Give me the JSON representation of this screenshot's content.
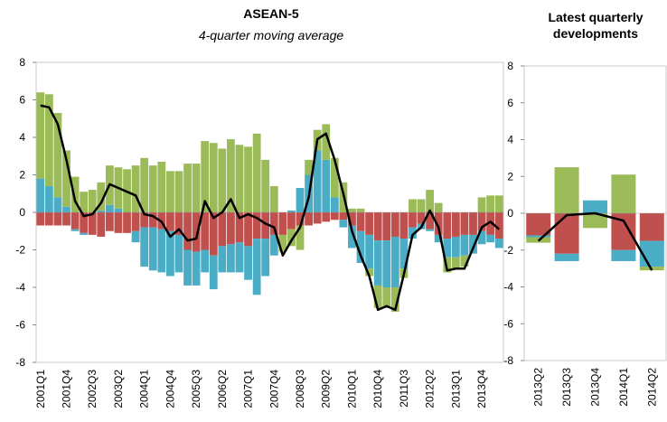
{
  "chart_data": [
    {
      "type": "bar",
      "title": "ASEAN-5",
      "subtitle": "4-quarter moving average",
      "stacked": true,
      "categories": [
        "2001Q1",
        null,
        null,
        "2001Q4",
        null,
        null,
        "2002Q3",
        null,
        null,
        "2003Q2",
        null,
        null,
        "2004Q1",
        null,
        null,
        "2004Q4",
        null,
        null,
        "2005Q3",
        null,
        null,
        "2006Q2",
        null,
        null,
        "2007Q1",
        null,
        null,
        "2007Q4",
        null,
        null,
        "2008Q3",
        null,
        null,
        "2009Q2",
        null,
        null,
        "2010Q1",
        null,
        null,
        "2010Q4",
        null,
        null,
        "2011Q3",
        null,
        null,
        "2012Q2",
        null,
        null,
        "2013Q1",
        null,
        null,
        "2013Q4",
        null,
        null
      ],
      "series": [
        {
          "color": "#c0504d",
          "values": [
            -0.7,
            -0.7,
            -0.7,
            -0.7,
            -0.9,
            -1.1,
            -1.2,
            -1.3,
            -1.0,
            -1.1,
            -1.1,
            -1.0,
            -0.8,
            -0.8,
            -0.9,
            -1.0,
            -1.2,
            -2.0,
            -2.1,
            -2.0,
            -2.3,
            -1.8,
            -1.7,
            -1.6,
            -1.8,
            -1.4,
            -1.4,
            -1.2,
            -1.2,
            -0.9,
            -0.7,
            -0.7,
            -0.6,
            -0.5,
            -0.4,
            -0.4,
            -0.7,
            -1.0,
            -1.2,
            -1.5,
            -1.5,
            -1.3,
            -1.4,
            -0.8,
            -0.6,
            -0.9,
            -1.2,
            -1.4,
            -1.3,
            -1.2,
            -1.2,
            -1.0,
            -1.2,
            -1.4
          ]
        },
        {
          "color": "#4bacc6",
          "values": [
            1.8,
            1.4,
            0.8,
            0.3,
            -0.1,
            -0.1,
            0,
            0.1,
            0.4,
            0.2,
            0,
            -0.6,
            -2.1,
            -2.3,
            -2.3,
            -2.4,
            -2.0,
            -1.9,
            -1.8,
            -1.2,
            -1.8,
            -1.4,
            -1.5,
            -1.6,
            -1.8,
            -3.0,
            -2.0,
            -1.1,
            0,
            0.1,
            1.3,
            2.0,
            3.3,
            2.8,
            0.8,
            -0.4,
            -1.2,
            -1.7,
            -1.8,
            -2.4,
            -2.5,
            -2.7,
            -1.6,
            -0.6,
            -0.3,
            -0.1,
            -0.4,
            -1.0,
            -1.1,
            -1.1,
            -1.0,
            -0.7,
            -0.4,
            -0.5
          ]
        },
        {
          "color": "#9bbb59",
          "values": [
            4.6,
            4.9,
            4.5,
            3.0,
            1.9,
            1.1,
            1.2,
            1.5,
            2.1,
            2.2,
            2.3,
            2.5,
            2.9,
            2.5,
            2.7,
            2.2,
            2.2,
            2.6,
            2.6,
            3.8,
            3.7,
            3.4,
            3.9,
            3.6,
            3.5,
            4.2,
            2.8,
            1.4,
            -0.9,
            -0.9,
            -1.3,
            0.8,
            1.1,
            1.9,
            2.1,
            1.6,
            0.2,
            0.2,
            -0.4,
            -1.2,
            -1.1,
            -1.3,
            -0.5,
            0.7,
            0.7,
            1.2,
            0.5,
            -0.8,
            -0.6,
            -0.6,
            0,
            0.8,
            0.9,
            0.9
          ]
        },
        {
          "type": "line",
          "color": "#000000",
          "values": [
            5.7,
            5.6,
            4.7,
            2.8,
            0.6,
            -0.2,
            -0.1,
            0.5,
            1.5,
            1.3,
            1.1,
            0.9,
            -0.1,
            -0.2,
            -0.5,
            -1.3,
            -0.9,
            -1.5,
            -1.4,
            0.6,
            -0.3,
            0,
            0.7,
            -0.3,
            -0.1,
            -0.3,
            -0.6,
            -0.8,
            -2.3,
            -1.5,
            -0.8,
            0.8,
            3.9,
            4.2,
            2.8,
            1.0,
            -1.0,
            -2.3,
            -3.4,
            -5.2,
            -5.0,
            -5.2,
            -3.3,
            -1.2,
            -0.8,
            0.1,
            -0.8,
            -3.1,
            -3.0,
            -3.0,
            -1.9,
            -0.8,
            -0.5,
            -0.9
          ]
        }
      ],
      "ylim": [
        -8,
        8
      ],
      "yticks": [
        -8,
        -6,
        -4,
        -2,
        0,
        2,
        4,
        6,
        8
      ],
      "grid": false
    },
    {
      "type": "bar",
      "title": "Latest quarterly developments",
      "stacked": true,
      "categories": [
        "2013Q2",
        "2013Q3",
        "2013Q4",
        "2014Q1",
        "2014Q2"
      ],
      "series": [
        {
          "color": "#c0504d",
          "values": [
            -1.2,
            -2.2,
            0,
            -2.0,
            -1.5
          ]
        },
        {
          "color": "#4bacc6",
          "values": [
            -0.1,
            -0.4,
            0.7,
            -0.6,
            -1.4
          ]
        },
        {
          "color": "#9bbb59",
          "values": [
            -0.3,
            2.5,
            -0.8,
            2.1,
            -0.2
          ]
        },
        {
          "type": "line",
          "color": "#000000",
          "values": [
            -1.5,
            -0.1,
            0,
            -0.4,
            -3.1
          ]
        }
      ],
      "ylim": [
        -8,
        8
      ],
      "yticks": [
        -8,
        -6,
        -4,
        -2,
        0,
        2,
        4,
        6,
        8
      ],
      "grid": false
    }
  ]
}
